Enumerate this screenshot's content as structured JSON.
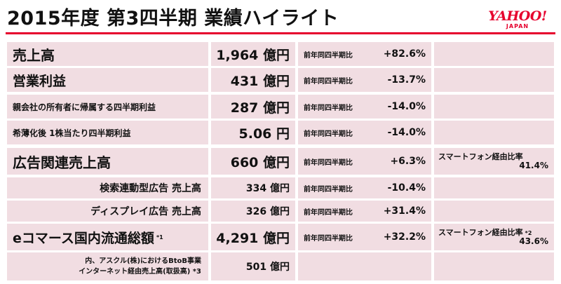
{
  "header": {
    "title": "2015年度 第3四半期 業績ハイライト",
    "logo_main": "YAHOO!",
    "logo_sub": "JAPAN",
    "accent_color": "#e6002d",
    "cell_color": "#f1dde2"
  },
  "rows": [
    {
      "label": "売上高",
      "value": "1,964 億円",
      "cmp_label": "前年同四半期比",
      "cmp_value": "+82.6%"
    },
    {
      "label": "営業利益",
      "value": "431 億円",
      "cmp_label": "前年同四半期比",
      "cmp_value": "-13.7%"
    },
    {
      "label": "親会社の所有者に帰属する四半期利益",
      "value": "287 億円",
      "cmp_label": "前年同四半期比",
      "cmp_value": "-14.0%"
    },
    {
      "label": "希薄化後 1株当たり四半期利益",
      "value": "5.06 円",
      "cmp_label": "前年同四半期比",
      "cmp_value": "-14.0%"
    },
    {
      "label": "広告関連売上高",
      "value": "660 億円",
      "cmp_label": "前年同四半期比",
      "cmp_value": "+6.3%",
      "note_label": "スマートフォン経由比率",
      "note_value": "41.4%"
    },
    {
      "label": "検索連動型広告 売上高",
      "value": "334 億円",
      "cmp_label": "前年同四半期比",
      "cmp_value": "-10.4%"
    },
    {
      "label": "ディスプレイ広告 売上高",
      "value": "326 億円",
      "cmp_label": "前年同四半期比",
      "cmp_value": "+31.4%"
    },
    {
      "label": "eコマース国内流通総額",
      "label_sup": "*1",
      "value": "4,291 億円",
      "cmp_label": "前年同四半期比",
      "cmp_value": "+32.2%",
      "note_label": "スマートフォン経由比率",
      "note_sup": "*2",
      "note_value": "43.6%"
    },
    {
      "label_line1": "内、アスクル(株)におけるBtoB事業",
      "label_line2": "インターネット経由売上高(取扱高) *3",
      "value": "501 億円"
    }
  ]
}
